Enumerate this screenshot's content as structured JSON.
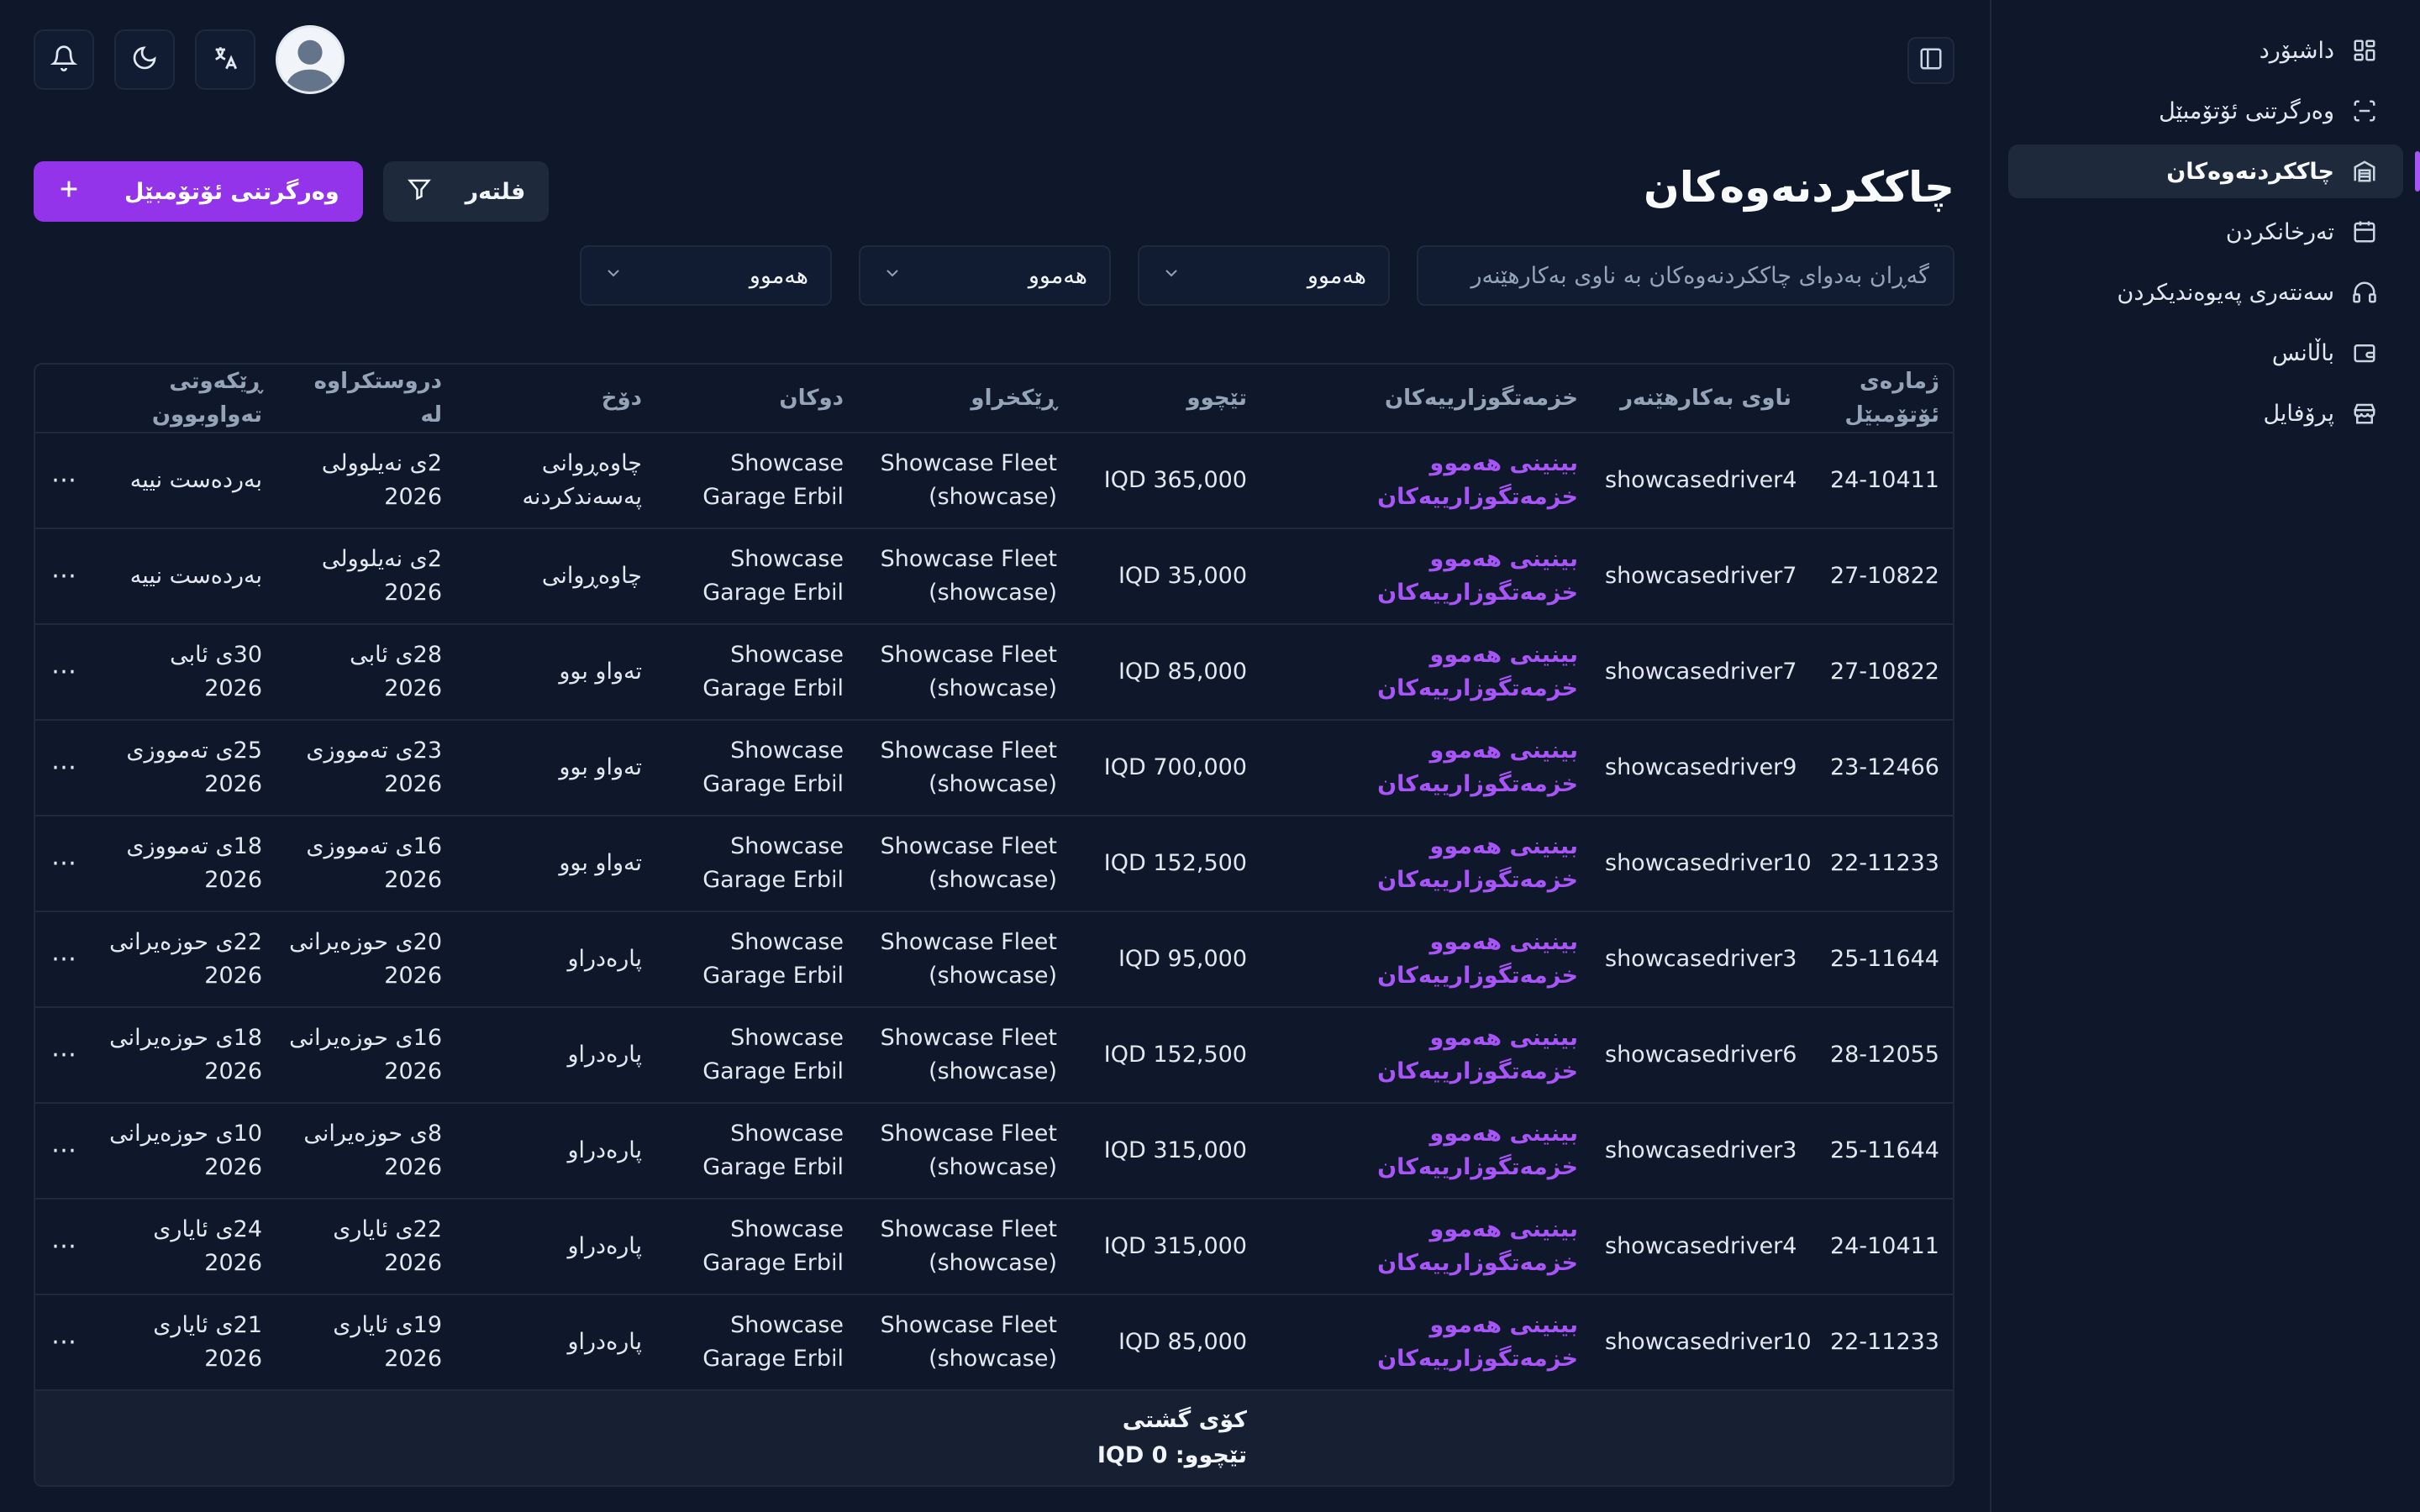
{
  "sidebar": {
    "items": [
      {
        "label": "داشبۆرد",
        "icon": "dashboard-icon",
        "active": false
      },
      {
        "label": "وەرگرتنی ئۆتۆمبێل",
        "icon": "scan-icon",
        "active": false
      },
      {
        "label": "چاککردنەوەکان",
        "icon": "repair-icon",
        "active": true
      },
      {
        "label": "تەرخانکردن",
        "icon": "calendar-icon",
        "active": false
      },
      {
        "label": "سەنتەری پەیوەندیکردن",
        "icon": "headset-icon",
        "active": false
      },
      {
        "label": "باڵانس",
        "icon": "wallet-icon",
        "active": false
      },
      {
        "label": "پرۆفایل",
        "icon": "store-icon",
        "active": false
      }
    ]
  },
  "header": {
    "title": "چاککردنەوەکان",
    "add_button": "وەرگرتنی ئۆتۆمبێل",
    "filter_button": "فلتەر"
  },
  "filters": {
    "search_placeholder": "گەڕان بەدوای چاککردنەوەکان بە ناوی بەکارهێنەر",
    "select1": "هەموو",
    "select2": "هەموو",
    "select3": "هەموو"
  },
  "table": {
    "columns": {
      "vehicle_no": "ژمارەی ئۆتۆمبێل",
      "user": "ناوی بەکارهێنەر",
      "services": "خزمەتگوزارییەکان",
      "cost": "تێچوو",
      "organization": "ڕێکخراو",
      "shop": "دوکان",
      "status": "دۆخ",
      "created": "دروستکراوە لە",
      "completed": "ڕێکەوتی تەواوبوون"
    },
    "rows": [
      {
        "vehicle_no": "24-10411",
        "user": "showcasedriver4",
        "services": "بینینی هەموو خزمەتگوزارییەکان",
        "cost": "IQD 365,000",
        "org1": "Showcase Fleet",
        "org2": "(showcase)",
        "shop1": "Showcase",
        "shop2": "Garage Erbil",
        "status": "چاوەڕوانی پەسەندکردنە",
        "created": "2ی نەیلوولی 2026",
        "completed": "بەردەست نییە"
      },
      {
        "vehicle_no": "27-10822",
        "user": "showcasedriver7",
        "services": "بینینی هەموو خزمەتگوزارییەکان",
        "cost": "IQD 35,000",
        "org1": "Showcase Fleet",
        "org2": "(showcase)",
        "shop1": "Showcase",
        "shop2": "Garage Erbil",
        "status": "چاوەڕوانی",
        "created": "2ی نەیلوولی 2026",
        "completed": "بەردەست نییە"
      },
      {
        "vehicle_no": "27-10822",
        "user": "showcasedriver7",
        "services": "بینینی هەموو خزمەتگوزارییەکان",
        "cost": "IQD 85,000",
        "org1": "Showcase Fleet",
        "org2": "(showcase)",
        "shop1": "Showcase",
        "shop2": "Garage Erbil",
        "status": "تەواو بوو",
        "created": "28ی ئابی 2026",
        "completed": "30ی ئابی 2026"
      },
      {
        "vehicle_no": "23-12466",
        "user": "showcasedriver9",
        "services": "بینینی هەموو خزمەتگوزارییەکان",
        "cost": "IQD 700,000",
        "org1": "Showcase Fleet",
        "org2": "(showcase)",
        "shop1": "Showcase",
        "shop2": "Garage Erbil",
        "status": "تەواو بوو",
        "created": "23ی تەمووزی 2026",
        "completed": "25ی تەمووزی 2026"
      },
      {
        "vehicle_no": "22-11233",
        "user": "showcasedriver10",
        "services": "بینینی هەموو خزمەتگوزارییەکان",
        "cost": "IQD 152,500",
        "org1": "Showcase Fleet",
        "org2": "(showcase)",
        "shop1": "Showcase",
        "shop2": "Garage Erbil",
        "status": "تەواو بوو",
        "created": "16ی تەمووزی 2026",
        "completed": "18ی تەمووزی 2026"
      },
      {
        "vehicle_no": "25-11644",
        "user": "showcasedriver3",
        "services": "بینینی هەموو خزمەتگوزارییەکان",
        "cost": "IQD 95,000",
        "org1": "Showcase Fleet",
        "org2": "(showcase)",
        "shop1": "Showcase",
        "shop2": "Garage Erbil",
        "status": "پارەدراو",
        "created": "20ی حوزەیرانی 2026",
        "completed": "22ی حوزەیرانی 2026"
      },
      {
        "vehicle_no": "28-12055",
        "user": "showcasedriver6",
        "services": "بینینی هەموو خزمەتگوزارییەکان",
        "cost": "IQD 152,500",
        "org1": "Showcase Fleet",
        "org2": "(showcase)",
        "shop1": "Showcase",
        "shop2": "Garage Erbil",
        "status": "پارەدراو",
        "created": "16ی حوزەیرانی 2026",
        "completed": "18ی حوزەیرانی 2026"
      },
      {
        "vehicle_no": "25-11644",
        "user": "showcasedriver3",
        "services": "بینینی هەموو خزمەتگوزارییەکان",
        "cost": "IQD 315,000",
        "org1": "Showcase Fleet",
        "org2": "(showcase)",
        "shop1": "Showcase",
        "shop2": "Garage Erbil",
        "status": "پارەدراو",
        "created": "8ی حوزەیرانی 2026",
        "completed": "10ی حوزەیرانی 2026"
      },
      {
        "vehicle_no": "24-10411",
        "user": "showcasedriver4",
        "services": "بینینی هەموو خزمەتگوزارییەکان",
        "cost": "IQD 315,000",
        "org1": "Showcase Fleet",
        "org2": "(showcase)",
        "shop1": "Showcase",
        "shop2": "Garage Erbil",
        "status": "پارەدراو",
        "created": "22ی ئایاری 2026",
        "completed": "24ی ئایاری 2026"
      },
      {
        "vehicle_no": "22-11233",
        "user": "showcasedriver10",
        "services": "بینینی هەموو خزمەتگوزارییەکان",
        "cost": "IQD 85,000",
        "org1": "Showcase Fleet",
        "org2": "(showcase)",
        "shop1": "Showcase",
        "shop2": "Garage Erbil",
        "status": "پارەدراو",
        "created": "19ی ئایاری 2026",
        "completed": "21ی ئایاری 2026"
      }
    ],
    "footer": {
      "total_label": "کۆی گشتی",
      "cost_label": "تێچوو: IQD 0"
    },
    "more_label": "⋯"
  },
  "colors": {
    "accent": "#9333ea",
    "link": "#a855f7",
    "background": "#0f172a"
  }
}
